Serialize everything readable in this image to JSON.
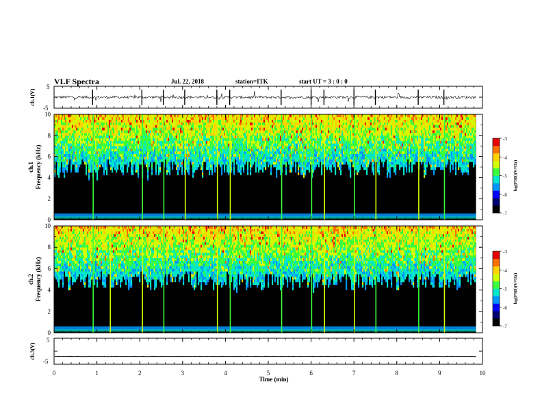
{
  "header": {
    "title": "VLF Spectra",
    "date": "Jul. 22, 2018",
    "station": "station=ITK",
    "start": "start  UT =   3 : 0  : 0"
  },
  "colorbar": {
    "label": "log(PSD)(V²/Hz)",
    "ticks": [
      "-3",
      "-4",
      "-5",
      "-6",
      "-7"
    ],
    "colors": [
      "#000000",
      "#00006e",
      "#0000ff",
      "#0096ff",
      "#00e6c8",
      "#3cff3c",
      "#d2ff00",
      "#ffd200",
      "#ff6e00",
      "#e60000",
      "#ffffff"
    ]
  },
  "chart_data": [
    {
      "type": "line",
      "panel": "ch1-waveform",
      "ylabel": "ch.1(V)",
      "ylim": [
        -5,
        5
      ],
      "yticks": [
        "5",
        "-5"
      ],
      "xlim": [
        0,
        10
      ],
      "baseline": 0,
      "grid": false
    },
    {
      "type": "heatmap",
      "panel": "ch1-spectrogram",
      "ylabel": "ch.1 Frequency (kHz)",
      "ylabel_lines": [
        "ch.1",
        "Frequency (kHz)"
      ],
      "ylim": [
        0,
        10
      ],
      "yticks": [
        "0",
        "2",
        "4",
        "6",
        "8",
        "10"
      ],
      "xlim": [
        0,
        10
      ],
      "zlabel": "log(PSD)(V²/Hz)",
      "zlim": [
        -7,
        -3
      ],
      "band_edge_khz": 5.6,
      "spike_times_min": [
        0.9,
        2.05,
        2.55,
        3.05,
        3.8,
        4.1,
        5.3,
        6.0,
        6.3,
        7.0,
        7.5,
        8.5,
        9.1
      ],
      "grid": false
    },
    {
      "type": "heatmap",
      "panel": "ch2-spectrogram",
      "ylabel": "ch.2 Frequency (kHz)",
      "ylabel_lines": [
        "ch.2",
        "Frequency (kHz)"
      ],
      "ylim": [
        0,
        10
      ],
      "yticks": [
        "0",
        "2",
        "4",
        "6",
        "8",
        "10"
      ],
      "xlim": [
        0,
        10
      ],
      "zlabel": "log(PSD)(V²/Hz)",
      "zlim": [
        -7,
        -3
      ],
      "band_edge_khz": 5.6,
      "spike_times_min": [
        0.9,
        1.3,
        2.05,
        2.55,
        3.8,
        4.1,
        5.3,
        6.0,
        6.3,
        7.0,
        7.5,
        8.5,
        9.1
      ],
      "grid": false
    },
    {
      "type": "line",
      "panel": "ch3-waveform",
      "ylabel": "ch.3(V)",
      "ylim": [
        -5,
        5
      ],
      "yticks": [
        "5",
        "-5"
      ],
      "xlim": [
        0,
        10
      ],
      "baseline": -2,
      "grid": false
    }
  ],
  "xaxis": {
    "label": "Time (min)",
    "ticks": [
      "0",
      "1",
      "2",
      "3",
      "4",
      "5",
      "6",
      "7",
      "8",
      "9",
      "10"
    ],
    "range": [
      0,
      10
    ],
    "data_end": 9.85
  }
}
